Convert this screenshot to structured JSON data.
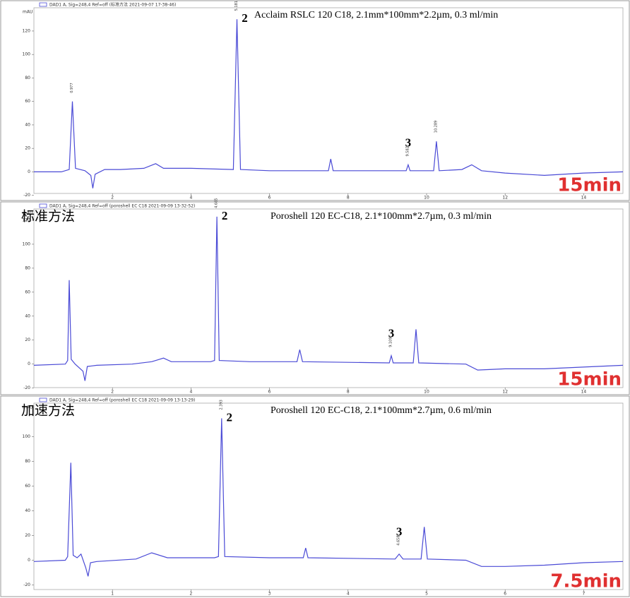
{
  "chart_data": [
    {
      "type": "line",
      "header": "DAD1 A, Sig=248,4 Ref=off (标准方法 2021-09-07 17-38-46)",
      "title": "Acclaim RSLC 120 C18, 2.1mm*100mm*2.2µm, 0.3 ml/min",
      "time_label": "15min",
      "y_label": "mAU",
      "color": "#4a4ad6",
      "xlim": [
        0,
        15
      ],
      "ylim": [
        -22,
        138
      ],
      "xticks": [
        2,
        4,
        6,
        8,
        10,
        12,
        14
      ],
      "yticks": [
        -20,
        0,
        20,
        40,
        60,
        80,
        100,
        120
      ],
      "x": [
        0,
        0.7,
        0.9,
        0.98,
        1.06,
        1.3,
        1.45,
        1.5,
        1.56,
        1.8,
        2.2,
        2.8,
        3.1,
        3.3,
        4,
        5.08,
        5.17,
        5.26,
        6,
        7.5,
        7.56,
        7.62,
        9,
        9.48,
        9.53,
        9.58,
        10.18,
        10.25,
        10.32,
        10.9,
        11.15,
        11.4,
        12,
        13,
        14,
        15
      ],
      "values": [
        0,
        0,
        2,
        60,
        3,
        1,
        -3,
        -14,
        -2,
        2,
        2,
        3,
        7,
        3,
        3,
        2,
        130,
        2,
        1,
        1,
        11,
        1,
        1,
        1,
        6,
        1,
        1,
        26,
        1,
        2,
        6,
        1,
        -1,
        -3,
        -1,
        0
      ],
      "peak_labels": [
        {
          "text": "2",
          "x": 5.17,
          "y": 130
        },
        {
          "text": "3",
          "x": 9.53,
          "y": 6
        }
      ],
      "rt_labels": [
        {
          "text": "0.977",
          "x": 0.98,
          "y": 60
        },
        {
          "text": "5.181",
          "x": 5.17,
          "y": 130
        },
        {
          "text": "9.582",
          "x": 9.53,
          "y": 6
        },
        {
          "text": "10.289",
          "x": 10.25,
          "y": 26
        }
      ]
    },
    {
      "type": "line",
      "header": "DAD1 A, Sig=248,4 Ref=off (poroshell EC C18 2021-09-09 13-32-52)",
      "title": "Poroshell 120 EC-C18,  2.1*100mm*2.7µm, 0.3 ml/min",
      "method": "标准方法",
      "time_label": "15min",
      "y_label": "mAU",
      "color": "#4a4ad6",
      "xlim": [
        0,
        15
      ],
      "ylim": [
        -22,
        130
      ],
      "xticks": [
        2,
        4,
        6,
        8,
        10,
        12,
        14
      ],
      "yticks": [
        -20,
        0,
        20,
        40,
        60,
        80,
        100,
        120
      ],
      "x": [
        0,
        0.8,
        0.86,
        0.9,
        0.95,
        1.05,
        1.25,
        1.3,
        1.36,
        1.6,
        2.5,
        3,
        3.3,
        3.5,
        4.5,
        4.6,
        4.66,
        4.72,
        5.5,
        6.7,
        6.77,
        6.84,
        9.05,
        9.1,
        9.15,
        9.66,
        9.73,
        9.8,
        11,
        11.3,
        12,
        13,
        15
      ],
      "values": [
        -1,
        0,
        3,
        70,
        4,
        0,
        -6,
        -14,
        -2,
        -1,
        0,
        2,
        5,
        2,
        2,
        3,
        123,
        3,
        2,
        2,
        12,
        2,
        1,
        7,
        1,
        1,
        29,
        1,
        0,
        -5,
        -4,
        -4,
        -1
      ],
      "peak_labels": [
        {
          "text": "2",
          "x": 4.66,
          "y": 123
        },
        {
          "text": "3",
          "x": 9.1,
          "y": 7
        }
      ],
      "rt_labels": [
        {
          "text": "4.665",
          "x": 4.66,
          "y": 123
        },
        {
          "text": "9.109",
          "x": 9.1,
          "y": 7
        }
      ]
    },
    {
      "type": "line",
      "header": "DAD1 A, Sig=248,4 Ref=off (poroshell EC C18 2021-09-09 13-13-29)",
      "title": "Poroshell 120 EC-C18,  2.1*100mm*2.7µm, 0.6 ml/min",
      "method": "加速方法",
      "time_label": "7.5min",
      "y_label": "mAU",
      "color": "#4a4ad6",
      "xlim": [
        0,
        7.5
      ],
      "ylim": [
        -22,
        125
      ],
      "xticks": [
        1,
        2,
        3,
        4,
        5,
        6,
        7
      ],
      "yticks": [
        -20,
        0,
        20,
        40,
        60,
        80,
        100
      ],
      "x": [
        0,
        0.4,
        0.43,
        0.47,
        0.5,
        0.55,
        0.6,
        0.66,
        0.69,
        0.72,
        0.8,
        1.3,
        1.5,
        1.7,
        2.3,
        2.35,
        2.39,
        2.43,
        3,
        3.43,
        3.46,
        3.49,
        4.6,
        4.65,
        4.7,
        4.93,
        4.97,
        5.01,
        5.5,
        5.7,
        6,
        6.5,
        7,
        7.5
      ],
      "values": [
        -1,
        0,
        3,
        79,
        4,
        2,
        5,
        -6,
        -13,
        -2,
        -1,
        1,
        6,
        2,
        2,
        3,
        115,
        3,
        2,
        2,
        10,
        2,
        1,
        5,
        1,
        1,
        27,
        1,
        0,
        -5,
        -5,
        -4,
        -2,
        -1
      ],
      "peak_labels": [
        {
          "text": "2",
          "x": 2.39,
          "y": 115
        },
        {
          "text": "3",
          "x": 4.65,
          "y": 5
        }
      ],
      "rt_labels": [
        {
          "text": "2.393",
          "x": 2.39,
          "y": 115
        },
        {
          "text": "4.658",
          "x": 4.65,
          "y": 5
        }
      ]
    }
  ]
}
